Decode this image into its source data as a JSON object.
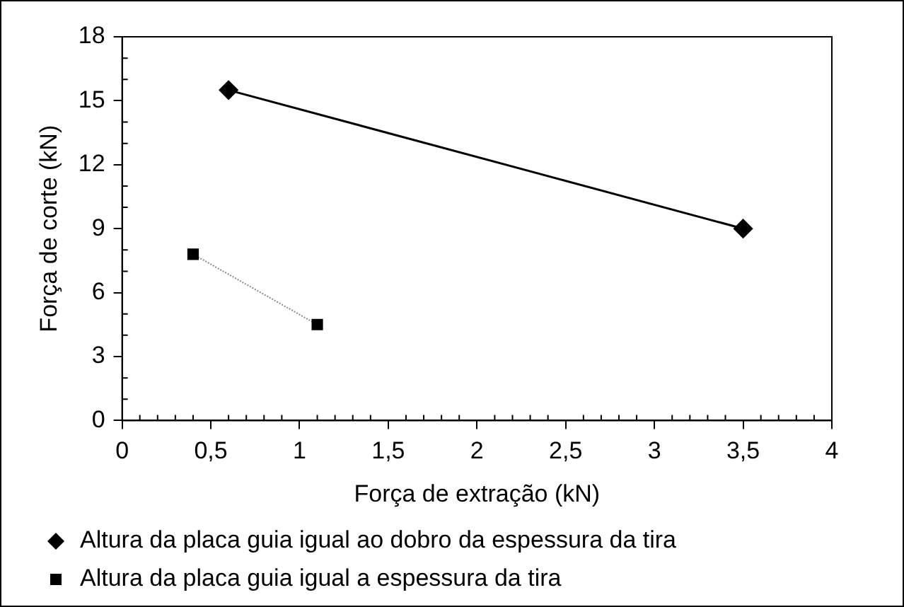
{
  "chart_data": {
    "type": "line",
    "xlabel": "Força de extração (kN)",
    "ylabel": "Força de corte (kN)",
    "series": [
      {
        "name": "Altura da placa guia igual ao dobro da espessura da tira",
        "color": "#000000",
        "x": [
          0.6,
          3.5
        ],
        "values": [
          15.5,
          9.0
        ],
        "marker": "diamond",
        "line_style": "solid"
      },
      {
        "name": "Altura da placa guia igual a espessura da tira",
        "color": "#000000",
        "x": [
          0.4,
          1.1
        ],
        "values": [
          7.8,
          4.5
        ],
        "marker": "square",
        "line_style": "dotted"
      }
    ],
    "xlim": [
      0,
      4
    ],
    "xticks": [
      0,
      {
        "value": 0.5,
        "label": "0,5"
      },
      1,
      {
        "value": 1.5,
        "label": "1,5"
      },
      2,
      {
        "value": 2.5,
        "label": "2,5"
      },
      3,
      {
        "value": 3.5,
        "label": "3,5"
      },
      4
    ],
    "ylim": [
      0,
      18
    ],
    "yticks": [
      0,
      3,
      6,
      9,
      12,
      15,
      18
    ],
    "grid": false,
    "legend": "bottom"
  }
}
